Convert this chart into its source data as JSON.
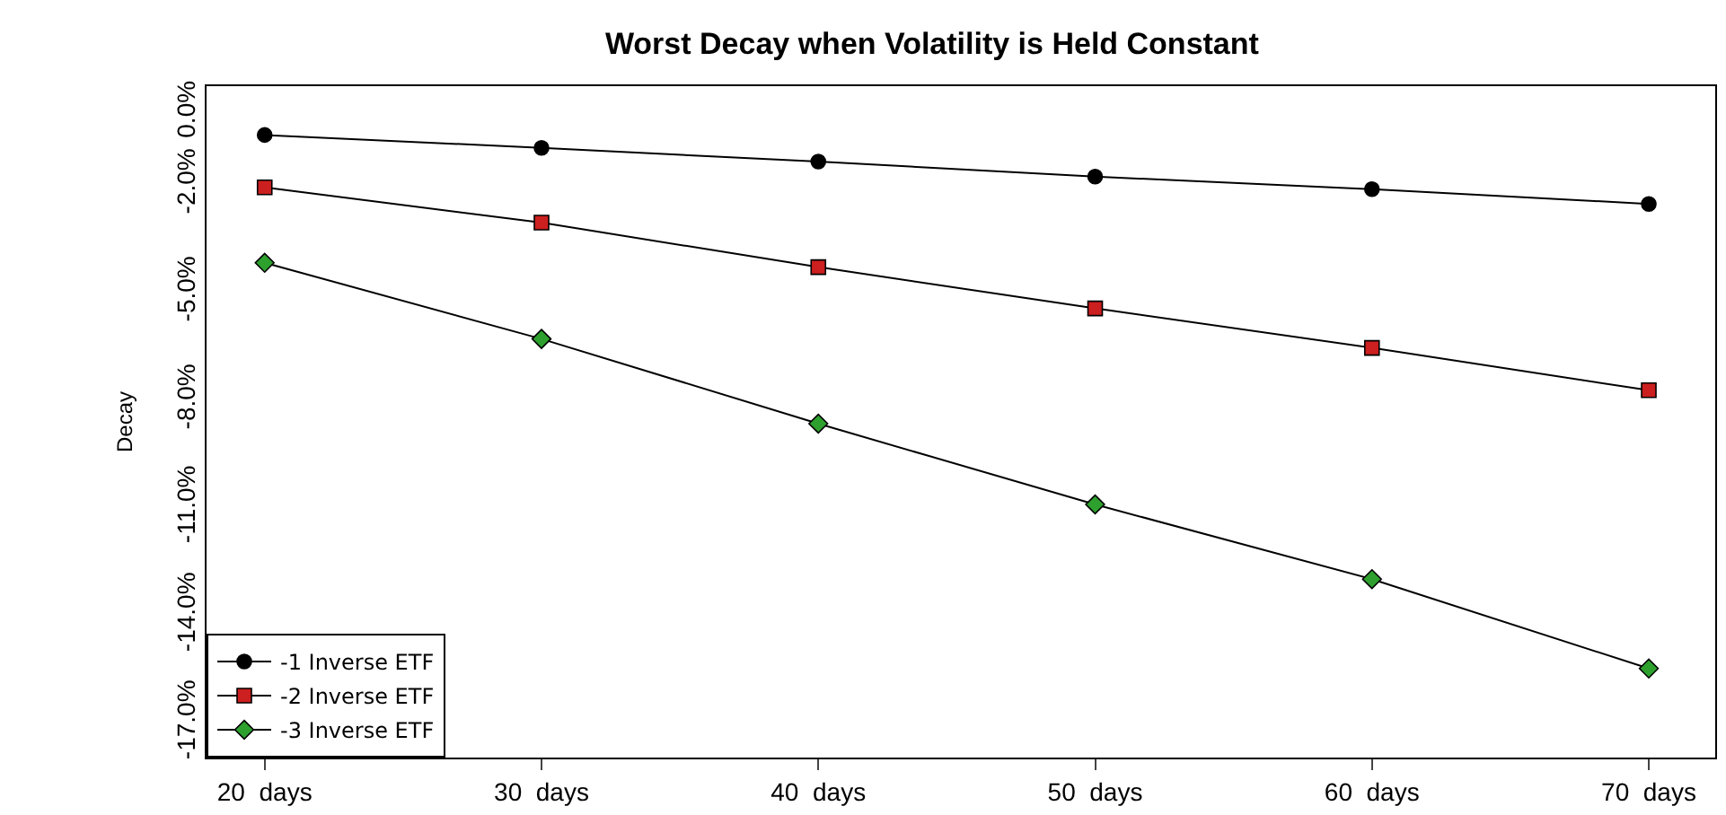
{
  "chart_data": {
    "type": "line",
    "title": "Worst Decay when Volatility is Held Constant",
    "ylabel": "Decay",
    "categories": [
      "20  days",
      "30  days",
      "40  days",
      "50  days",
      "60  days",
      "70  days"
    ],
    "series": [
      {
        "name": "-1 Inverse ETF",
        "color": "#000000",
        "marker": "circle",
        "values": [
          -0.61,
          -0.97,
          -1.35,
          -1.77,
          -2.12,
          -2.53
        ]
      },
      {
        "name": "-2 Inverse ETF",
        "color": "#cc1f1f",
        "marker": "square",
        "values": [
          -2.07,
          -3.05,
          -4.29,
          -5.44,
          -6.54,
          -7.72
        ]
      },
      {
        "name": "-3 Inverse ETF",
        "color": "#2ea02e",
        "marker": "diamond",
        "values": [
          -4.17,
          -6.29,
          -8.65,
          -10.9,
          -12.98,
          -15.47
        ]
      }
    ],
    "ylim": [
      -17.95,
      0.75
    ],
    "yticks": [
      {
        "value": 0,
        "label": "0.0%"
      },
      {
        "value": -2,
        "label": "-2.0%"
      },
      {
        "value": -5,
        "label": "-5.0%"
      },
      {
        "value": -8,
        "label": "-8.0%"
      },
      {
        "value": -11,
        "label": "-11.0%"
      },
      {
        "value": -14,
        "label": "-14.0%"
      },
      {
        "value": -17,
        "label": "-17.0%"
      }
    ],
    "legend": "bottom left",
    "line_style": "solid"
  }
}
